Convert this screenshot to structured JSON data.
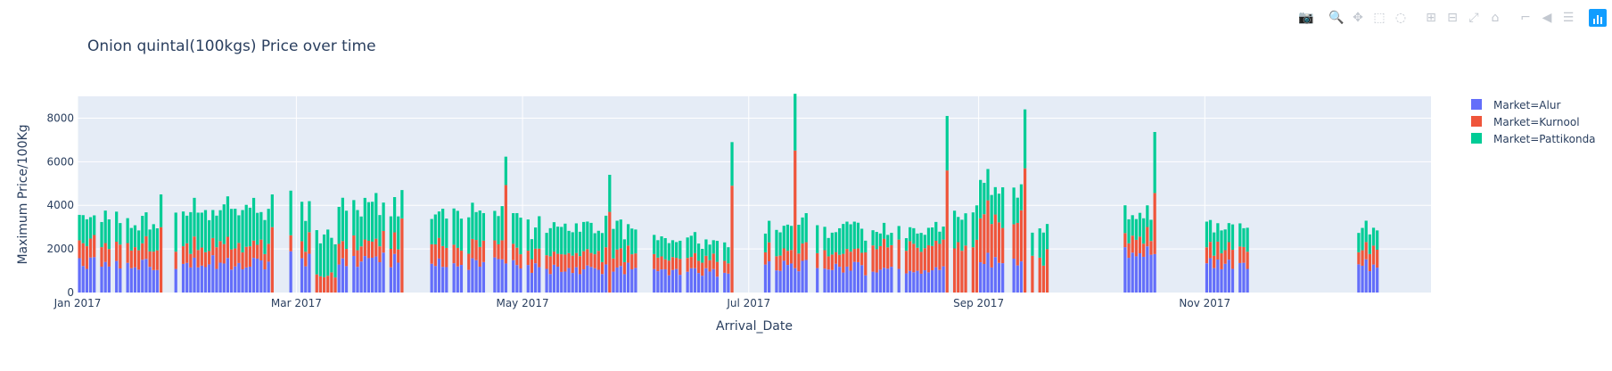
{
  "modebar": {
    "buttons": [
      {
        "group": 1,
        "icon": "camera-icon",
        "glyph": "📷",
        "active": false
      },
      {
        "group": 2,
        "icon": "zoom-icon",
        "glyph": "🔍",
        "active": true
      },
      {
        "group": 2,
        "icon": "pan-icon",
        "glyph": "✥",
        "active": false
      },
      {
        "group": 2,
        "icon": "box-select-icon",
        "glyph": "⬚",
        "active": false
      },
      {
        "group": 2,
        "icon": "lasso-select-icon",
        "glyph": "◌",
        "active": false
      },
      {
        "group": 3,
        "icon": "zoom-in-icon",
        "glyph": "⊞",
        "active": false
      },
      {
        "group": 3,
        "icon": "zoom-out-icon",
        "glyph": "⊟",
        "active": false
      },
      {
        "group": 3,
        "icon": "autoscale-icon",
        "glyph": "⤢",
        "active": false
      },
      {
        "group": 3,
        "icon": "reset-axes-icon",
        "glyph": "⌂",
        "active": false
      },
      {
        "group": 4,
        "icon": "spike-lines-icon",
        "glyph": "⌐",
        "active": false
      },
      {
        "group": 4,
        "icon": "hover-closest-icon",
        "glyph": "◀",
        "active": false
      },
      {
        "group": 4,
        "icon": "hover-compare-icon",
        "glyph": "☰",
        "active": false
      }
    ],
    "logo_icon": "plotly-logo-icon"
  },
  "chart_data": {
    "type": "bar",
    "barmode": "stack",
    "title": "Onion quintal(100kgs) Price over time",
    "xlabel": "Arrival_Date",
    "ylabel": "Maximum Price/100Kg",
    "x_start": "2017-01-01",
    "x_range": [
      "2017-01-01",
      "2017-12-31"
    ],
    "x_tick_labels": [
      "Jan 2017",
      "Mar 2017",
      "May 2017",
      "Jul 2017",
      "Sep 2017",
      "Nov 2017"
    ],
    "x_tick_dates": [
      "2017-01-01",
      "2017-03-01",
      "2017-05-01",
      "2017-07-01",
      "2017-09-01",
      "2017-11-01"
    ],
    "ylim": [
      0,
      9000
    ],
    "y_ticks": [
      0,
      2000,
      4000,
      6000,
      8000
    ],
    "y_tick_labels": [
      "0",
      "2000",
      "4000",
      "6000",
      "8000"
    ],
    "grid": true,
    "legend_position": "right",
    "series": [
      {
        "name": "Market=Alur",
        "color": "#636efa",
        "segments": [
          {
            "from": "2017-01-01",
            "to": "2017-01-22",
            "level": 1300,
            "every": 1
          },
          {
            "from": "2017-01-27",
            "to": "2017-02-21",
            "level": 1400,
            "every": 1
          },
          {
            "from": "2017-02-27",
            "to": "2017-03-04",
            "level": 1600,
            "every": 1
          },
          {
            "from": "2017-03-12",
            "to": "2017-03-28",
            "level": 1500,
            "every": 1
          },
          {
            "from": "2017-04-05",
            "to": "2017-04-30",
            "level": 1300,
            "every": 1
          },
          {
            "from": "2017-05-01",
            "to": "2017-05-31",
            "level": 1100,
            "every": 1
          },
          {
            "from": "2017-06-05",
            "to": "2017-06-25",
            "level": 900,
            "every": 1
          },
          {
            "from": "2017-07-05",
            "to": "2017-07-31",
            "level": 1200,
            "every": 1
          },
          {
            "from": "2017-08-01",
            "to": "2017-08-22",
            "level": 1000,
            "every": 1
          },
          {
            "from": "2017-09-01",
            "to": "2017-09-12",
            "level": 1500,
            "every": 1
          },
          {
            "from": "2017-10-10",
            "to": "2017-10-18",
            "level": 1700,
            "every": 1
          },
          {
            "from": "2017-11-01",
            "to": "2017-11-12",
            "level": 1300,
            "every": 1
          },
          {
            "from": "2017-12-10",
            "to": "2017-12-18",
            "level": 1300,
            "every": 1
          }
        ]
      },
      {
        "name": "Market=Kurnool",
        "color": "#ef553b",
        "segments": [
          {
            "from": "2017-01-01",
            "to": "2017-01-22",
            "level": 900,
            "every": 1
          },
          {
            "from": "2017-01-27",
            "to": "2017-02-21",
            "level": 800,
            "every": 1
          },
          {
            "from": "2017-02-27",
            "to": "2017-03-28",
            "level": 800,
            "every": 1
          },
          {
            "from": "2017-04-05",
            "to": "2017-04-30",
            "level": 800,
            "every": 1
          },
          {
            "from": "2017-05-01",
            "to": "2017-05-31",
            "level": 700,
            "every": 1
          },
          {
            "from": "2017-06-05",
            "to": "2017-06-25",
            "level": 600,
            "every": 1
          },
          {
            "from": "2017-07-05",
            "to": "2017-07-31",
            "level": 700,
            "every": 1
          },
          {
            "from": "2017-08-01",
            "to": "2017-08-22",
            "level": 1100,
            "every": 1
          },
          {
            "from": "2017-08-25",
            "to": "2017-09-12",
            "level": 2000,
            "every": 1
          },
          {
            "from": "2017-09-15",
            "to": "2017-09-19",
            "level": 1600,
            "every": 1
          },
          {
            "from": "2017-10-10",
            "to": "2017-10-18",
            "level": 800,
            "every": 1
          },
          {
            "from": "2017-11-01",
            "to": "2017-11-12",
            "level": 700,
            "every": 1
          },
          {
            "from": "2017-12-10",
            "to": "2017-12-18",
            "level": 700,
            "every": 1
          }
        ]
      },
      {
        "name": "Market=Pattikonda",
        "color": "#00cc96",
        "segments": [
          {
            "from": "2017-01-01",
            "to": "2017-01-22",
            "level": 1200,
            "every": 1
          },
          {
            "from": "2017-01-27",
            "to": "2017-02-21",
            "level": 1600,
            "every": 1
          },
          {
            "from": "2017-02-27",
            "to": "2017-03-28",
            "level": 1700,
            "every": 1
          },
          {
            "from": "2017-04-05",
            "to": "2017-04-30",
            "level": 1400,
            "every": 1
          },
          {
            "from": "2017-05-01",
            "to": "2017-05-31",
            "level": 1200,
            "every": 1
          },
          {
            "from": "2017-06-05",
            "to": "2017-06-25",
            "level": 800,
            "every": 1
          },
          {
            "from": "2017-07-05",
            "to": "2017-07-31",
            "level": 1100,
            "every": 1
          },
          {
            "from": "2017-08-01",
            "to": "2017-08-22",
            "level": 700,
            "every": 1
          },
          {
            "from": "2017-08-25",
            "to": "2017-09-12",
            "level": 1500,
            "every": 1
          },
          {
            "from": "2017-09-15",
            "to": "2017-09-19",
            "level": 1400,
            "every": 1
          },
          {
            "from": "2017-10-10",
            "to": "2017-10-18",
            "level": 1200,
            "every": 1
          },
          {
            "from": "2017-11-01",
            "to": "2017-11-12",
            "level": 1000,
            "every": 1
          },
          {
            "from": "2017-12-10",
            "to": "2017-12-18",
            "level": 1000,
            "every": 1
          }
        ]
      }
    ],
    "spikes": [
      {
        "date": "2017-01-23",
        "values": [
          0,
          3000,
          1500
        ]
      },
      {
        "date": "2017-02-22",
        "values": [
          0,
          3000,
          1500
        ]
      },
      {
        "date": "2017-03-29",
        "values": [
          0,
          3400,
          1300
        ]
      },
      {
        "date": "2017-04-26",
        "values": [
          0,
          3600,
          1300
        ]
      },
      {
        "date": "2017-05-24",
        "values": [
          0,
          3700,
          1700
        ]
      },
      {
        "date": "2017-06-26",
        "values": [
          0,
          4900,
          2000
        ]
      },
      {
        "date": "2017-07-13",
        "values": [
          0,
          5400,
          2600
        ]
      },
      {
        "date": "2017-08-23",
        "values": [
          0,
          5600,
          2500
        ]
      },
      {
        "date": "2017-09-13",
        "values": [
          0,
          5700,
          2700
        ]
      },
      {
        "date": "2017-10-18",
        "values": [
          0,
          2800,
          2800
        ]
      }
    ]
  }
}
